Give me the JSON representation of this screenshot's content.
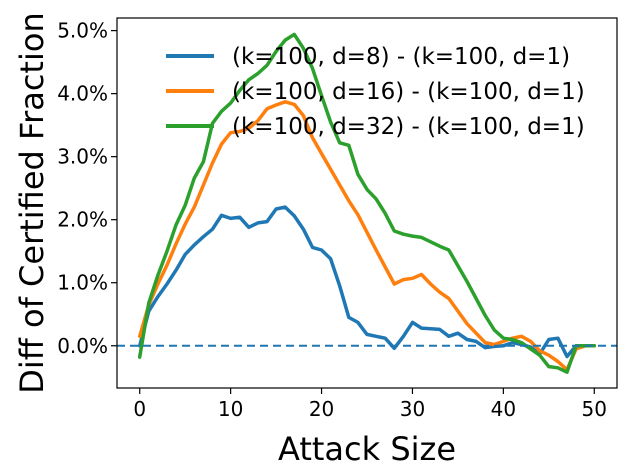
{
  "chart_data": {
    "type": "line",
    "title": "",
    "xlabel": "Attack Size",
    "ylabel": "Diff of Certified Fraction",
    "xlim": [
      -2.5,
      52.5
    ],
    "ylim": [
      -0.67,
      5.2
    ],
    "xticks": [
      0,
      10,
      20,
      30,
      40,
      50
    ],
    "yticks": [
      0.0,
      1.0,
      2.0,
      3.0,
      4.0,
      5.0
    ],
    "xtick_labels": [
      "0",
      "10",
      "20",
      "30",
      "40",
      "50"
    ],
    "ytick_labels": [
      "0.0%",
      "1.0%",
      "2.0%",
      "3.0%",
      "4.0%",
      "5.0%"
    ],
    "grid": false,
    "legend_position": "top-right",
    "baseline": {
      "y": 0.0,
      "style": "dashed",
      "color": "#1f77b4"
    },
    "series": [
      {
        "name": "(k=100, d=8) - (k=100, d=1)",
        "color": "#1f77b4",
        "x": [
          0,
          1,
          2,
          3,
          4,
          5,
          6,
          7,
          8,
          9,
          10,
          11,
          12,
          13,
          14,
          15,
          16,
          17,
          18,
          19,
          20,
          21,
          22,
          23,
          24,
          25,
          26,
          27,
          28,
          29,
          30,
          31,
          32,
          33,
          34,
          35,
          36,
          37,
          38,
          39,
          40,
          41,
          42,
          43,
          44,
          45,
          46,
          47,
          48,
          49,
          50
        ],
        "y": [
          0.0,
          0.55,
          0.78,
          0.98,
          1.2,
          1.45,
          1.6,
          1.73,
          1.85,
          2.07,
          2.02,
          2.04,
          1.88,
          1.95,
          1.97,
          2.17,
          2.2,
          2.06,
          1.85,
          1.56,
          1.52,
          1.38,
          0.95,
          0.45,
          0.37,
          0.18,
          0.15,
          0.12,
          -0.04,
          0.15,
          0.37,
          0.28,
          0.27,
          0.26,
          0.15,
          0.2,
          0.1,
          0.07,
          -0.03,
          -0.01,
          0.0,
          0.05,
          0.02,
          -0.02,
          -0.13,
          0.1,
          0.12,
          -0.17,
          0.0,
          0.0,
          0.0
        ]
      },
      {
        "name": "(k=100, d=16) - (k=100, d=1)",
        "color": "#ff7f0e",
        "x": [
          0,
          1,
          2,
          3,
          4,
          5,
          6,
          7,
          8,
          9,
          10,
          11,
          12,
          13,
          14,
          15,
          16,
          17,
          18,
          19,
          20,
          21,
          22,
          23,
          24,
          25,
          26,
          27,
          28,
          29,
          30,
          31,
          32,
          33,
          34,
          35,
          36,
          37,
          38,
          39,
          40,
          41,
          42,
          43,
          44,
          45,
          46,
          47,
          48,
          49,
          50
        ],
        "y": [
          0.15,
          0.65,
          0.98,
          1.28,
          1.62,
          1.93,
          2.2,
          2.55,
          2.9,
          3.2,
          3.38,
          3.4,
          3.45,
          3.57,
          3.76,
          3.82,
          3.87,
          3.83,
          3.65,
          3.3,
          3.05,
          2.8,
          2.55,
          2.3,
          2.08,
          1.8,
          1.52,
          1.25,
          0.98,
          1.05,
          1.07,
          1.13,
          0.98,
          0.85,
          0.75,
          0.55,
          0.35,
          0.2,
          0.05,
          0.02,
          0.07,
          0.12,
          0.15,
          0.07,
          -0.08,
          -0.15,
          -0.25,
          -0.38,
          -0.05,
          0.0,
          0.0
        ]
      },
      {
        "name": "(k=100, d=32) - (k=100, d=1)",
        "color": "#2ca02c",
        "x": [
          0,
          1,
          2,
          3,
          4,
          5,
          6,
          7,
          8,
          9,
          10,
          11,
          12,
          13,
          14,
          15,
          16,
          17,
          18,
          19,
          20,
          21,
          22,
          23,
          24,
          25,
          26,
          27,
          28,
          29,
          30,
          31,
          32,
          33,
          34,
          35,
          36,
          37,
          38,
          39,
          40,
          41,
          42,
          43,
          44,
          45,
          46,
          47,
          48,
          49,
          50
        ],
        "y": [
          -0.18,
          0.68,
          1.12,
          1.5,
          1.92,
          2.23,
          2.66,
          2.92,
          3.53,
          3.72,
          3.85,
          4.05,
          4.22,
          4.32,
          4.45,
          4.67,
          4.85,
          4.94,
          4.72,
          4.4,
          3.97,
          3.55,
          3.22,
          3.18,
          2.72,
          2.48,
          2.33,
          2.1,
          1.82,
          1.77,
          1.74,
          1.72,
          1.65,
          1.58,
          1.52,
          1.27,
          1.02,
          0.75,
          0.48,
          0.25,
          0.12,
          0.1,
          0.05,
          -0.05,
          -0.15,
          -0.33,
          -0.35,
          -0.42,
          0.0,
          0.0,
          0.0
        ]
      }
    ]
  }
}
